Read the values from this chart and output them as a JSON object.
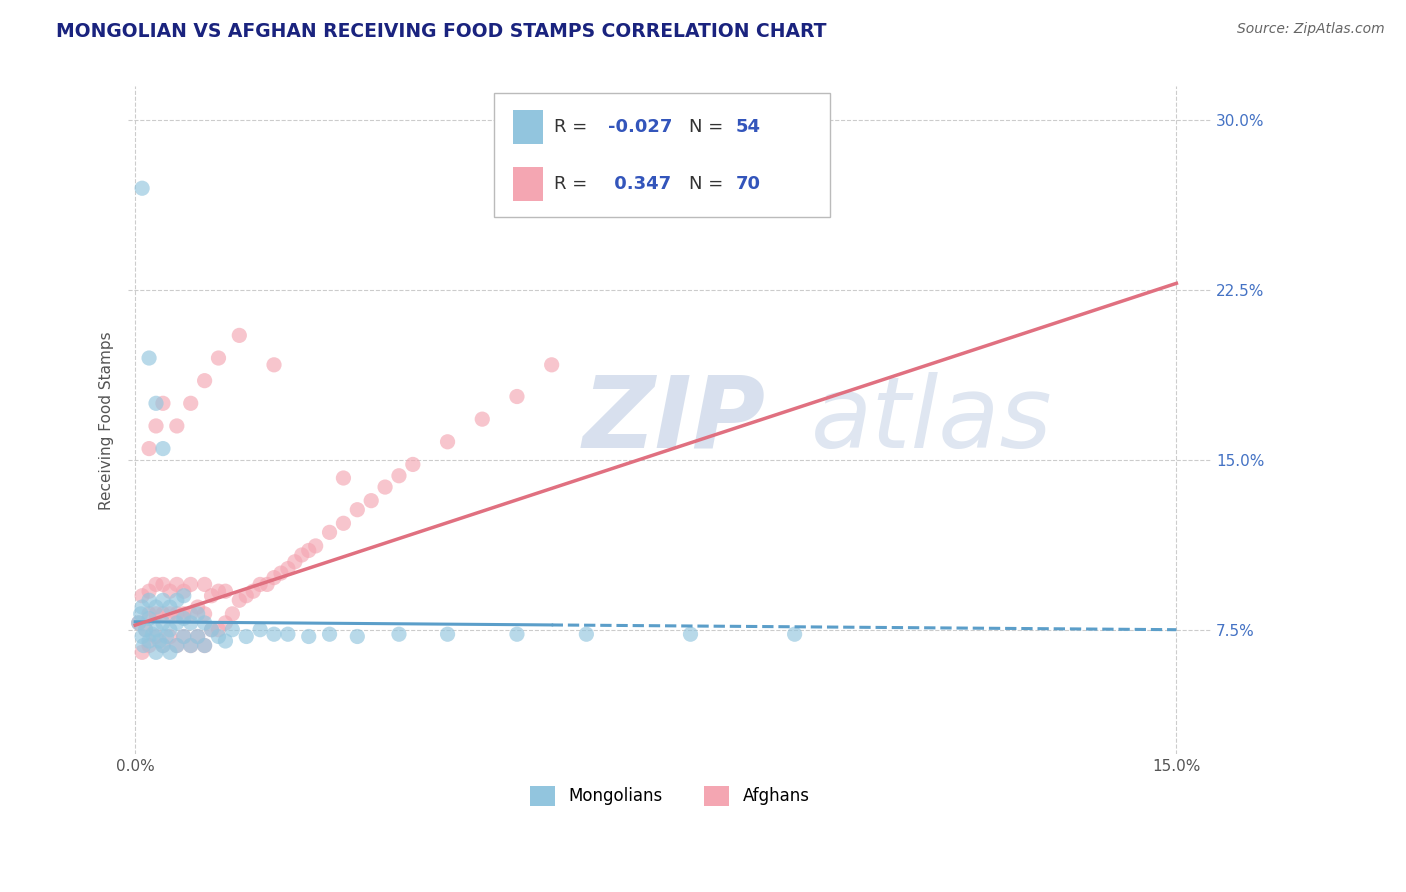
{
  "title": "MONGOLIAN VS AFGHAN RECEIVING FOOD STAMPS CORRELATION CHART",
  "source": "Source: ZipAtlas.com",
  "ylabel": "Receiving Food Stamps",
  "xlim": [
    -0.001,
    0.155
  ],
  "ylim": [
    0.02,
    0.315
  ],
  "yticks": [
    0.075,
    0.15,
    0.225,
    0.3
  ],
  "ytick_labels": [
    "7.5%",
    "15.0%",
    "22.5%",
    "30.0%"
  ],
  "xticks": [
    0.0,
    0.15
  ],
  "xtick_labels": [
    "0.0%",
    "15.0%"
  ],
  "mongolian_R": -0.027,
  "mongolian_N": 54,
  "afghan_R": 0.347,
  "afghan_N": 70,
  "mongolian_color": "#92c5de",
  "afghan_color": "#f4a6b2",
  "mongolian_line_color": "#5b9ec9",
  "afghan_line_color": "#e07080",
  "background_color": "#ffffff",
  "grid_color": "#cccccc",
  "title_color": "#1a237e",
  "source_color": "#666666",
  "watermark": "ZIPatlas",
  "watermark_color": "#dce4f0",
  "legend_mongolian_label": "Mongolians",
  "legend_afghan_label": "Afghans",
  "legend_R_color": "#3355bb",
  "mongolian_scatter_x": [
    0.0005,
    0.0008,
    0.001,
    0.001,
    0.0012,
    0.0015,
    0.002,
    0.002,
    0.002,
    0.0025,
    0.003,
    0.003,
    0.003,
    0.0035,
    0.004,
    0.004,
    0.004,
    0.0045,
    0.005,
    0.005,
    0.005,
    0.006,
    0.006,
    0.006,
    0.007,
    0.007,
    0.007,
    0.008,
    0.008,
    0.009,
    0.009,
    0.01,
    0.01,
    0.011,
    0.012,
    0.013,
    0.014,
    0.016,
    0.018,
    0.02,
    0.022,
    0.025,
    0.028,
    0.032,
    0.038,
    0.045,
    0.055,
    0.065,
    0.08,
    0.095,
    0.001,
    0.002,
    0.003,
    0.004
  ],
  "mongolian_scatter_y": [
    0.078,
    0.082,
    0.072,
    0.085,
    0.068,
    0.075,
    0.07,
    0.08,
    0.088,
    0.073,
    0.065,
    0.075,
    0.085,
    0.07,
    0.068,
    0.078,
    0.088,
    0.072,
    0.065,
    0.075,
    0.085,
    0.068,
    0.078,
    0.088,
    0.072,
    0.08,
    0.09,
    0.068,
    0.078,
    0.072,
    0.082,
    0.068,
    0.078,
    0.075,
    0.072,
    0.07,
    0.075,
    0.072,
    0.075,
    0.073,
    0.073,
    0.072,
    0.073,
    0.072,
    0.073,
    0.073,
    0.073,
    0.073,
    0.073,
    0.073,
    0.27,
    0.195,
    0.175,
    0.155
  ],
  "afghan_scatter_x": [
    0.0005,
    0.001,
    0.001,
    0.0015,
    0.002,
    0.002,
    0.002,
    0.003,
    0.003,
    0.003,
    0.004,
    0.004,
    0.004,
    0.005,
    0.005,
    0.005,
    0.006,
    0.006,
    0.006,
    0.007,
    0.007,
    0.007,
    0.008,
    0.008,
    0.008,
    0.009,
    0.009,
    0.01,
    0.01,
    0.01,
    0.011,
    0.011,
    0.012,
    0.012,
    0.013,
    0.013,
    0.014,
    0.015,
    0.016,
    0.017,
    0.018,
    0.019,
    0.02,
    0.021,
    0.022,
    0.023,
    0.024,
    0.025,
    0.026,
    0.028,
    0.03,
    0.032,
    0.034,
    0.036,
    0.038,
    0.04,
    0.045,
    0.05,
    0.055,
    0.06,
    0.002,
    0.003,
    0.004,
    0.006,
    0.008,
    0.01,
    0.012,
    0.015,
    0.02,
    0.03
  ],
  "afghan_scatter_y": [
    0.078,
    0.065,
    0.09,
    0.075,
    0.068,
    0.082,
    0.092,
    0.072,
    0.082,
    0.095,
    0.068,
    0.082,
    0.095,
    0.072,
    0.082,
    0.092,
    0.068,
    0.082,
    0.095,
    0.072,
    0.082,
    0.092,
    0.068,
    0.082,
    0.095,
    0.072,
    0.085,
    0.068,
    0.082,
    0.095,
    0.075,
    0.09,
    0.075,
    0.092,
    0.078,
    0.092,
    0.082,
    0.088,
    0.09,
    0.092,
    0.095,
    0.095,
    0.098,
    0.1,
    0.102,
    0.105,
    0.108,
    0.11,
    0.112,
    0.118,
    0.122,
    0.128,
    0.132,
    0.138,
    0.143,
    0.148,
    0.158,
    0.168,
    0.178,
    0.192,
    0.155,
    0.165,
    0.175,
    0.165,
    0.175,
    0.185,
    0.195,
    0.205,
    0.192,
    0.142
  ],
  "mon_line_x0": 0.0,
  "mon_line_x1": 0.15,
  "mon_line_y0": 0.0785,
  "mon_line_y1": 0.075,
  "afg_line_x0": 0.0,
  "afg_line_x1": 0.15,
  "afg_line_y0": 0.077,
  "afg_line_y1": 0.228
}
